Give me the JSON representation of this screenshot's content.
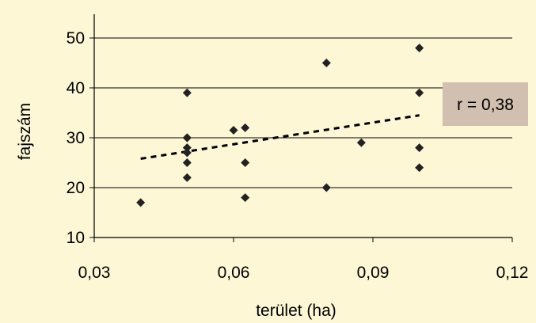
{
  "chart_data": {
    "type": "scatter",
    "xlabel": "terület (ha)",
    "ylabel": "fajszám",
    "xlim": [
      0.03,
      0.12
    ],
    "ylim": [
      10,
      50
    ],
    "x_ticks": [
      0.03,
      0.06,
      0.09,
      0.12
    ],
    "x_tick_labels": [
      "0,03",
      "0,06",
      "0,09",
      "0,12"
    ],
    "y_ticks": [
      10,
      20,
      30,
      40,
      50
    ],
    "y_tick_labels": [
      "10",
      "20",
      "30",
      "40",
      "50"
    ],
    "grid": "horizontal",
    "series": [
      {
        "x": [
          0.04,
          0.05,
          0.05,
          0.05,
          0.05,
          0.05,
          0.05,
          0.05,
          0.06,
          0.0625,
          0.0625,
          0.0625,
          0.08,
          0.08,
          0.0875,
          0.1,
          0.1,
          0.1,
          0.1
        ],
        "y": [
          17,
          39,
          30,
          28,
          27,
          25,
          22,
          30,
          31.5,
          32,
          25,
          18,
          45,
          20,
          29,
          48,
          39,
          28,
          24
        ]
      }
    ],
    "trendline": {
      "x": [
        0.04,
        0.1
      ],
      "y": [
        25.8,
        34.5
      ],
      "style": "dashed"
    },
    "annotation": {
      "text": "r = 0,38",
      "background": "#d1bfb0"
    }
  },
  "colors": {
    "background": "#fdf7d6",
    "marker": "#222222",
    "gridline": "#000000",
    "annotation_box": "#d1bfb0"
  }
}
